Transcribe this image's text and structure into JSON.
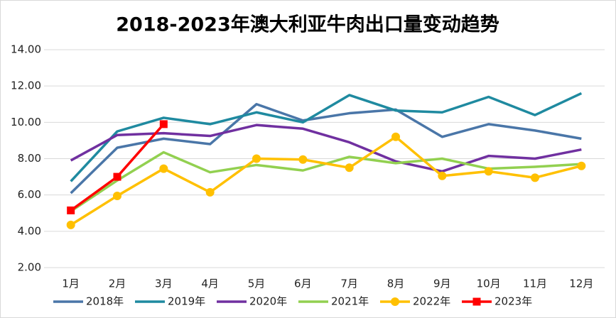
{
  "chart_data": {
    "type": "line",
    "title": "2018-2023年澳大利亚牛肉出口量变动趋势",
    "categories": [
      "1月",
      "2月",
      "3月",
      "4月",
      "5月",
      "6月",
      "7月",
      "8月",
      "9月",
      "10月",
      "11月",
      "12月"
    ],
    "series": [
      {
        "name": "2018年",
        "color": "#4a76a8",
        "values": [
          6.1,
          8.6,
          9.1,
          8.8,
          11.0,
          10.1,
          10.5,
          10.7,
          9.2,
          9.9,
          9.55,
          9.1
        ]
      },
      {
        "name": "2019年",
        "color": "#1f8aa0",
        "values": [
          6.75,
          9.5,
          10.25,
          9.9,
          10.55,
          10.0,
          11.5,
          10.65,
          10.55,
          11.4,
          10.4,
          11.6
        ]
      },
      {
        "name": "2020年",
        "color": "#7030a0",
        "values": [
          7.9,
          9.3,
          9.4,
          9.25,
          9.85,
          9.65,
          8.9,
          7.85,
          7.3,
          8.15,
          8.0,
          8.5
        ]
      },
      {
        "name": "2021年",
        "color": "#92d050",
        "values": [
          5.1,
          6.8,
          8.35,
          7.25,
          7.65,
          7.35,
          8.1,
          7.75,
          8.0,
          7.45,
          7.55,
          7.7
        ]
      },
      {
        "name": "2022年",
        "color": "#ffc000",
        "marker": "circle",
        "values": [
          4.35,
          5.95,
          7.45,
          6.15,
          8.0,
          7.95,
          7.5,
          9.2,
          7.05,
          7.3,
          6.95,
          7.6
        ]
      },
      {
        "name": "2023年",
        "color": "#ff0000",
        "marker": "square",
        "values": [
          5.15,
          7.0,
          9.9,
          null,
          null,
          null,
          null,
          null,
          null,
          null,
          null,
          null
        ]
      }
    ],
    "ylim": [
      2,
      14
    ],
    "yticks": [
      {
        "value": 2,
        "label": "2.00"
      },
      {
        "value": 4,
        "label": "4.00"
      },
      {
        "value": 6,
        "label": "6.00"
      },
      {
        "value": 8,
        "label": "8.00"
      },
      {
        "value": 10,
        "label": "10.00"
      },
      {
        "value": 12,
        "label": "12.00"
      },
      {
        "value": 14,
        "label": "14.00"
      }
    ],
    "grid": true,
    "legend": "bottom"
  }
}
